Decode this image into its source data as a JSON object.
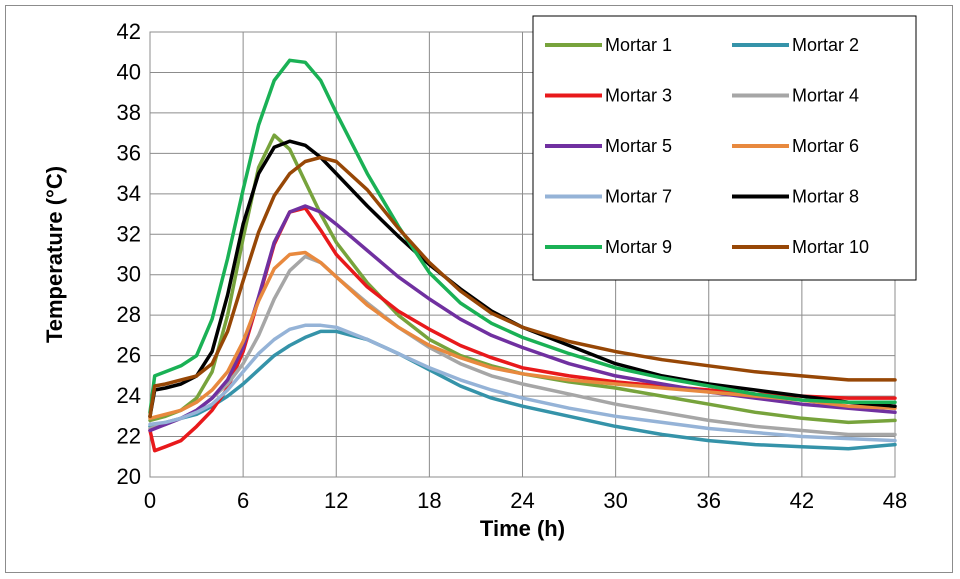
{
  "chart_data": {
    "type": "line",
    "xlabel": "Time (h)",
    "ylabel": "Temperature (°C)",
    "xlim": [
      0,
      48
    ],
    "ylim": [
      20,
      42
    ],
    "xticks": [
      0,
      6,
      12,
      18,
      24,
      30,
      36,
      42,
      48
    ],
    "yticks": [
      20,
      22,
      24,
      26,
      28,
      30,
      32,
      34,
      36,
      38,
      40,
      42
    ],
    "grid": true,
    "legend_position": "top-right",
    "series": [
      {
        "name": "Mortar 1",
        "color": "#77a33c",
        "x": [
          0,
          1,
          2,
          3,
          4,
          5,
          6,
          7,
          8,
          9,
          10,
          11,
          12,
          14,
          16,
          18,
          20,
          22,
          24,
          27,
          30,
          33,
          36,
          39,
          42,
          45,
          48
        ],
        "y": [
          22.8,
          23.0,
          23.3,
          23.9,
          25.2,
          28.0,
          31.8,
          35.3,
          36.9,
          36.2,
          34.6,
          33.0,
          31.6,
          29.6,
          28.0,
          26.8,
          26.0,
          25.5,
          25.1,
          24.7,
          24.4,
          24.0,
          23.6,
          23.2,
          22.9,
          22.7,
          22.8
        ]
      },
      {
        "name": "Mortar 2",
        "color": "#3593a9",
        "x": [
          0,
          1,
          2,
          3,
          4,
          5,
          6,
          7,
          8,
          9,
          10,
          11,
          12,
          14,
          16,
          18,
          20,
          22,
          24,
          27,
          30,
          33,
          36,
          39,
          42,
          45,
          48
        ],
        "y": [
          22.5,
          22.7,
          22.9,
          23.1,
          23.5,
          24.0,
          24.6,
          25.3,
          26.0,
          26.5,
          26.9,
          27.2,
          27.2,
          26.8,
          26.1,
          25.3,
          24.5,
          23.9,
          23.5,
          23.0,
          22.5,
          22.1,
          21.8,
          21.6,
          21.5,
          21.4,
          21.6
        ]
      },
      {
        "name": "Mortar 3",
        "color": "#e8191b",
        "x": [
          0,
          0.3,
          1,
          2,
          3,
          4,
          5,
          6,
          7,
          8,
          9,
          10,
          11,
          12,
          14,
          16,
          18,
          20,
          22,
          24,
          27,
          30,
          33,
          36,
          39,
          42,
          45,
          48
        ],
        "y": [
          22.3,
          21.3,
          21.5,
          21.8,
          22.5,
          23.3,
          24.4,
          26.2,
          28.8,
          31.5,
          33.1,
          33.3,
          32.2,
          31.0,
          29.4,
          28.2,
          27.3,
          26.5,
          25.9,
          25.4,
          25.0,
          24.7,
          24.5,
          24.3,
          24.1,
          24.0,
          23.9,
          23.9
        ]
      },
      {
        "name": "Mortar 4",
        "color": "#a6a6a6",
        "x": [
          0,
          1,
          2,
          3,
          4,
          5,
          6,
          7,
          8,
          9,
          10,
          11,
          12,
          14,
          16,
          18,
          20,
          22,
          24,
          27,
          30,
          33,
          36,
          39,
          42,
          45,
          48
        ],
        "y": [
          22.4,
          22.6,
          22.9,
          23.3,
          23.9,
          24.6,
          25.6,
          27.0,
          28.8,
          30.2,
          30.9,
          30.6,
          29.9,
          28.6,
          27.4,
          26.4,
          25.6,
          25.0,
          24.6,
          24.1,
          23.6,
          23.2,
          22.8,
          22.5,
          22.3,
          22.1,
          22.1
        ]
      },
      {
        "name": "Mortar 5",
        "color": "#7030a0",
        "x": [
          0,
          1,
          2,
          3,
          4,
          5,
          6,
          7,
          8,
          9,
          10,
          11,
          12,
          14,
          16,
          18,
          20,
          22,
          24,
          27,
          30,
          33,
          36,
          39,
          42,
          45,
          48
        ],
        "y": [
          22.3,
          22.6,
          22.9,
          23.3,
          23.9,
          24.8,
          26.4,
          28.9,
          31.6,
          33.1,
          33.4,
          33.1,
          32.5,
          31.2,
          29.9,
          28.8,
          27.8,
          27.0,
          26.4,
          25.6,
          25.0,
          24.6,
          24.2,
          23.9,
          23.6,
          23.4,
          23.2
        ]
      },
      {
        "name": "Mortar 6",
        "color": "#e8893e",
        "x": [
          0,
          1,
          2,
          3,
          4,
          5,
          6,
          7,
          8,
          9,
          10,
          11,
          12,
          14,
          16,
          18,
          20,
          22,
          24,
          27,
          30,
          33,
          36,
          39,
          42,
          45,
          48
        ],
        "y": [
          22.9,
          23.1,
          23.3,
          23.7,
          24.3,
          25.2,
          26.7,
          28.7,
          30.3,
          31.0,
          31.1,
          30.6,
          29.9,
          28.5,
          27.4,
          26.5,
          25.9,
          25.4,
          25.1,
          24.8,
          24.6,
          24.4,
          24.2,
          24.0,
          23.8,
          23.5,
          23.4
        ]
      },
      {
        "name": "Mortar 7",
        "color": "#95b3d7",
        "x": [
          0,
          1,
          2,
          3,
          4,
          5,
          6,
          7,
          8,
          9,
          10,
          11,
          12,
          14,
          16,
          18,
          20,
          22,
          24,
          27,
          30,
          33,
          36,
          39,
          42,
          45,
          48
        ],
        "y": [
          22.6,
          22.7,
          22.9,
          23.2,
          23.6,
          24.3,
          25.2,
          26.1,
          26.8,
          27.3,
          27.5,
          27.5,
          27.4,
          26.8,
          26.1,
          25.4,
          24.8,
          24.3,
          23.9,
          23.4,
          23.0,
          22.7,
          22.4,
          22.2,
          22.0,
          21.9,
          21.8
        ]
      },
      {
        "name": "Mortar 8",
        "color": "#000000",
        "x": [
          0,
          0.3,
          1,
          2,
          3,
          4,
          5,
          6,
          7,
          8,
          9,
          10,
          11,
          12,
          14,
          16,
          18,
          20,
          22,
          24,
          27,
          30,
          33,
          36,
          39,
          42,
          45,
          48
        ],
        "y": [
          23.0,
          24.3,
          24.4,
          24.6,
          25.0,
          26.2,
          29.0,
          32.5,
          35.0,
          36.3,
          36.6,
          36.4,
          35.8,
          35.0,
          33.4,
          31.9,
          30.5,
          29.3,
          28.2,
          27.4,
          26.5,
          25.6,
          25.0,
          24.6,
          24.3,
          24.0,
          23.7,
          23.5
        ]
      },
      {
        "name": "Mortar 9",
        "color": "#1ab155",
        "x": [
          0,
          0.3,
          1,
          2,
          3,
          4,
          5,
          6,
          7,
          8,
          9,
          10,
          11,
          12,
          14,
          16,
          18,
          20,
          22,
          24,
          27,
          30,
          33,
          36,
          39,
          42,
          45,
          48
        ],
        "y": [
          23.2,
          25.0,
          25.2,
          25.5,
          26.0,
          27.8,
          30.8,
          34.2,
          37.4,
          39.6,
          40.6,
          40.5,
          39.6,
          38.0,
          35.0,
          32.4,
          30.1,
          28.6,
          27.6,
          26.9,
          26.1,
          25.4,
          24.9,
          24.5,
          24.1,
          23.8,
          23.7,
          23.7
        ]
      },
      {
        "name": "Mortar 10",
        "color": "#974706",
        "x": [
          0,
          0.3,
          1,
          2,
          3,
          4,
          5,
          6,
          7,
          8,
          9,
          10,
          11,
          12,
          14,
          16,
          18,
          20,
          22,
          24,
          27,
          30,
          33,
          36,
          39,
          42,
          45,
          48
        ],
        "y": [
          23.0,
          24.5,
          24.6,
          24.8,
          25.0,
          25.6,
          27.2,
          29.7,
          32.1,
          33.9,
          35.0,
          35.6,
          35.8,
          35.6,
          34.2,
          32.3,
          30.6,
          29.2,
          28.1,
          27.4,
          26.7,
          26.2,
          25.8,
          25.5,
          25.2,
          25.0,
          24.8,
          24.8
        ]
      }
    ]
  }
}
